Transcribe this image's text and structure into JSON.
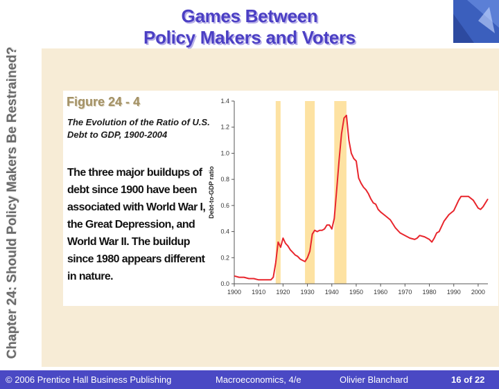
{
  "slide": {
    "title_line1": "Games Between",
    "title_line2": "Policy Makers and Voters",
    "side_title": "Chapter 24: Should Policy Makers Be Restrained?",
    "figure_label": "Figure 24 - 4",
    "figure_caption": "The Evolution of the Ratio of U.S. Debt to GDP, 1900-2004",
    "body_text": "The three major buildups of debt since 1900 have been associated with World War I, the Great Depression, and World War II. The buildup since 1980 appears different in nature.",
    "colors": {
      "title": "#4b3fc4",
      "footer_bg": "#4a49c4",
      "band": "#fde2a2",
      "line": "#e8252c"
    }
  },
  "footer": {
    "copyright": "© 2006 Prentice Hall Business Publishing",
    "book": "Macroeconomics, 4/e",
    "author": "Olivier Blanchard",
    "page": "16 of 22"
  },
  "chart_data": {
    "type": "line",
    "ylabel": "Debt-to-GDP ratio",
    "xlabel": "",
    "xlim": [
      1900,
      2004
    ],
    "ylim": [
      0,
      1.4
    ],
    "x_ticks": [
      1900,
      1910,
      1920,
      1930,
      1940,
      1950,
      1960,
      1970,
      1980,
      1990,
      2000
    ],
    "y_ticks": [
      "0.0",
      "0.2",
      "0.4",
      "0.6",
      "0.8",
      "1.0",
      "1.2",
      "1.4"
    ],
    "shaded_periods": [
      [
        1917,
        1919
      ],
      [
        1929,
        1933
      ],
      [
        1941,
        1946
      ]
    ],
    "series": [
      {
        "x": [
          1900,
          1902,
          1904,
          1906,
          1908,
          1910,
          1912,
          1914,
          1915,
          1916,
          1917,
          1918,
          1919,
          1920,
          1921,
          1922,
          1923,
          1924,
          1925,
          1926,
          1927,
          1928,
          1929,
          1930,
          1931,
          1932,
          1933,
          1934,
          1935,
          1936,
          1937,
          1938,
          1939,
          1940,
          1941,
          1942,
          1943,
          1944,
          1945,
          1946,
          1947,
          1948,
          1949,
          1950,
          1951,
          1952,
          1953,
          1954,
          1955,
          1956,
          1957,
          1958,
          1959,
          1960,
          1962,
          1964,
          1966,
          1968,
          1970,
          1972,
          1974,
          1975,
          1976,
          1978,
          1980,
          1981,
          1982,
          1983,
          1984,
          1986,
          1988,
          1990,
          1992,
          1993,
          1994,
          1996,
          1998,
          2000,
          2001,
          2002,
          2004
        ],
        "y": [
          0.06,
          0.05,
          0.05,
          0.04,
          0.04,
          0.03,
          0.03,
          0.03,
          0.03,
          0.05,
          0.16,
          0.32,
          0.28,
          0.35,
          0.31,
          0.29,
          0.26,
          0.24,
          0.22,
          0.21,
          0.19,
          0.18,
          0.17,
          0.2,
          0.25,
          0.38,
          0.41,
          0.4,
          0.41,
          0.41,
          0.42,
          0.45,
          0.45,
          0.42,
          0.5,
          0.72,
          0.95,
          1.15,
          1.27,
          1.29,
          1.1,
          1.0,
          0.96,
          0.94,
          0.81,
          0.77,
          0.74,
          0.72,
          0.69,
          0.65,
          0.62,
          0.61,
          0.57,
          0.55,
          0.52,
          0.49,
          0.43,
          0.39,
          0.37,
          0.35,
          0.34,
          0.35,
          0.37,
          0.36,
          0.34,
          0.32,
          0.35,
          0.39,
          0.4,
          0.48,
          0.53,
          0.56,
          0.64,
          0.67,
          0.67,
          0.67,
          0.64,
          0.58,
          0.57,
          0.59,
          0.65
        ]
      }
    ]
  }
}
